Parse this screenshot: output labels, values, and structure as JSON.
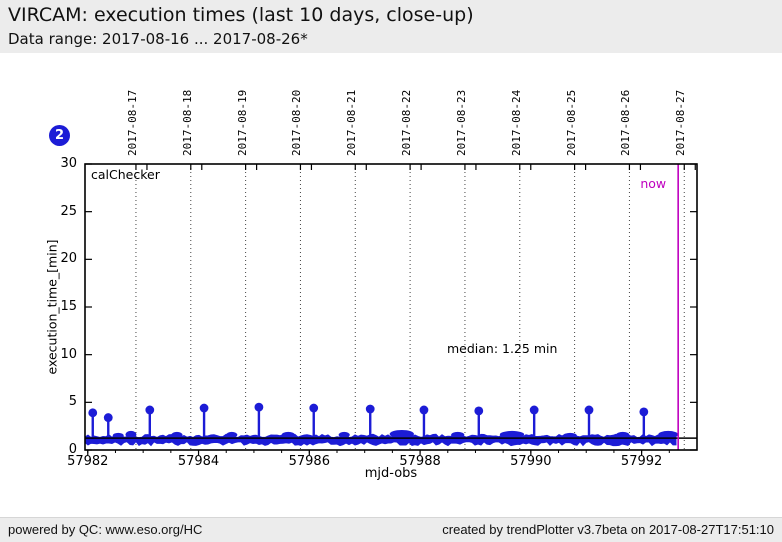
{
  "header": {
    "title": "VIRCAM: execution times (last 10 days, close-up)",
    "subtitle": "Data range: 2017-08-16 ... 2017-08-26*"
  },
  "badge": {
    "label": "2"
  },
  "colors": {
    "data_blue": "#1c1cd6",
    "badge_blue": "#1c1cd6",
    "magenta": "#bf00bf",
    "median_black": "#000000",
    "gridline_gray": "#444444",
    "header_bg": "#ececec",
    "footer_bg": "#ececec"
  },
  "chart_data": {
    "type": "scatter",
    "title": "VIRCAM: execution times (last 10 days, close-up)",
    "series_label": "calChecker",
    "xlabel": "mjd-obs",
    "ylabel": "execution_time_[min]",
    "xlim": [
      57981.95,
      57993.0
    ],
    "ylim": [
      0,
      30
    ],
    "x_major_ticks": [
      57982,
      57984,
      57986,
      57988,
      57990,
      57992
    ],
    "x_minor_tick_step": 0.5,
    "y_major_ticks": [
      0,
      5,
      10,
      15,
      20,
      25,
      30
    ],
    "grid": "vertical-dotted-at-dates",
    "legend_position": "none",
    "date_gridlines": [
      {
        "label": "2017-08-17",
        "mjd": 57982.87
      },
      {
        "label": "2017-08-18",
        "mjd": 57983.86
      },
      {
        "label": "2017-08-19",
        "mjd": 57984.85
      },
      {
        "label": "2017-08-20",
        "mjd": 57985.84
      },
      {
        "label": "2017-08-21",
        "mjd": 57986.83
      },
      {
        "label": "2017-08-22",
        "mjd": 57987.82
      },
      {
        "label": "2017-08-23",
        "mjd": 57988.81
      },
      {
        "label": "2017-08-24",
        "mjd": 57989.8
      },
      {
        "label": "2017-08-25",
        "mjd": 57990.79
      },
      {
        "label": "2017-08-26",
        "mjd": 57991.78
      },
      {
        "label": "2017-08-27",
        "mjd": 57992.77
      }
    ],
    "median_value": 1.25,
    "median_annotation": "median: 1.25 min",
    "now": {
      "label": "now",
      "mjd": 57992.66
    },
    "baseline_band": {
      "description": "dense scatter of routine executions",
      "value_low": 0.6,
      "value_high": 1.65,
      "x_start": 57981.95,
      "x_end": 57992.66
    },
    "spikes": [
      {
        "mjd": 57982.09,
        "value": 3.9
      },
      {
        "mjd": 57982.37,
        "value": 3.4
      },
      {
        "mjd": 57983.12,
        "value": 4.2
      },
      {
        "mjd": 57984.1,
        "value": 4.4
      },
      {
        "mjd": 57985.09,
        "value": 4.5
      },
      {
        "mjd": 57986.08,
        "value": 4.4
      },
      {
        "mjd": 57987.1,
        "value": 4.3
      },
      {
        "mjd": 57988.07,
        "value": 4.2
      },
      {
        "mjd": 57989.06,
        "value": 4.1
      },
      {
        "mjd": 57990.06,
        "value": 4.2
      },
      {
        "mjd": 57991.05,
        "value": 4.2
      },
      {
        "mjd": 57992.04,
        "value": 4.0
      }
    ],
    "bumps": [
      {
        "mjd": 57982.55,
        "value": 1.8,
        "width_days": 0.1
      },
      {
        "mjd": 57982.78,
        "value": 2.0,
        "width_days": 0.1
      },
      {
        "mjd": 57983.61,
        "value": 1.9,
        "width_days": 0.1
      },
      {
        "mjd": 57984.6,
        "value": 1.9,
        "width_days": 0.1
      },
      {
        "mjd": 57985.62,
        "value": 1.9,
        "width_days": 0.12
      },
      {
        "mjd": 57986.63,
        "value": 1.9,
        "width_days": 0.1
      },
      {
        "mjd": 57987.67,
        "value": 2.1,
        "width_days": 0.22
      },
      {
        "mjd": 57988.68,
        "value": 1.9,
        "width_days": 0.12
      },
      {
        "mjd": 57989.66,
        "value": 2.0,
        "width_days": 0.22
      },
      {
        "mjd": 57990.71,
        "value": 1.8,
        "width_days": 0.12
      },
      {
        "mjd": 57991.66,
        "value": 1.9,
        "width_days": 0.12
      },
      {
        "mjd": 57992.48,
        "value": 2.0,
        "width_days": 0.18
      }
    ]
  },
  "footer": {
    "left": "powered by QC: www.eso.org/HC",
    "right": "created by trendPlotter v3.7beta on 2017-08-27T17:51:10"
  }
}
